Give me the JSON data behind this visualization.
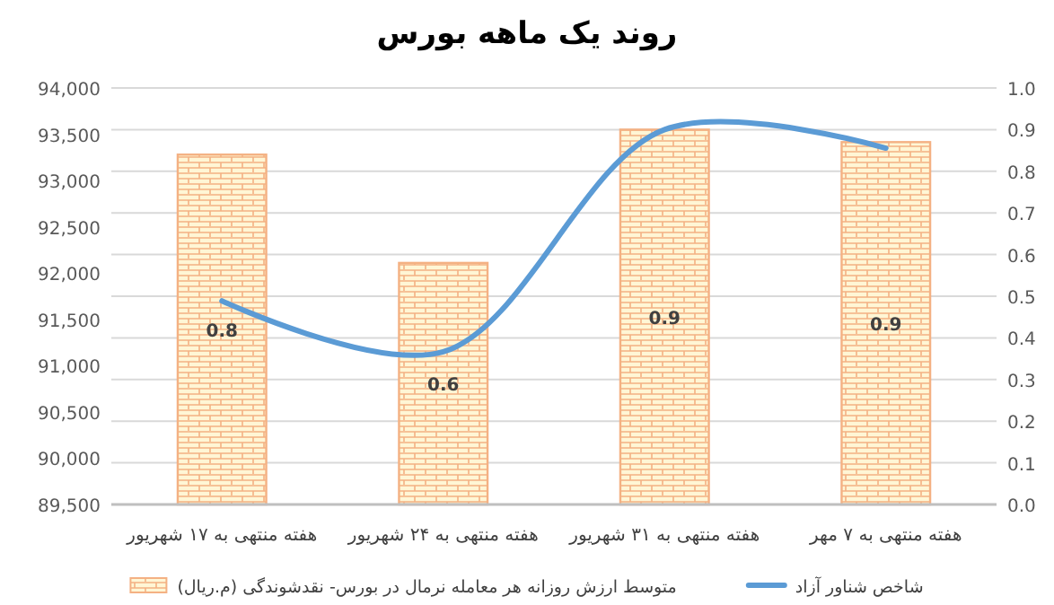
{
  "chart_data": {
    "type": "bar",
    "title": "روند یک ماهه بورس",
    "categories": [
      "هفته منتهی به ۱۷ شهریور",
      "هفته منتهی به ۲۴ شهریور",
      "هفته منتهی به ۳۱ شهریور",
      "هفته منتهی به ۷ مهر"
    ],
    "series": [
      {
        "name": "متوسط ارزش روزانه هر معامله نرمال در بورس- نقدشوندگی (م.ریال)",
        "axis": "y2",
        "color": "#f4b183",
        "values": [
          0.84,
          0.58,
          0.9,
          0.87
        ],
        "value_labels": [
          "0.8",
          "0.6",
          "0.9",
          "0.9"
        ]
      },
      {
        "name": "شاخص شناور آزاد",
        "type": "line",
        "color": "#5b9bd5",
        "values": [
          91700,
          91150,
          93550,
          93350
        ]
      }
    ],
    "ylim": [
      89500,
      94000
    ],
    "yticks": [
      {
        "value": 89500,
        "label": "89,500"
      },
      {
        "value": 90000,
        "label": "90,000"
      },
      {
        "value": 90500,
        "label": "90,500"
      },
      {
        "value": 91000,
        "label": "91,000"
      },
      {
        "value": 91500,
        "label": "91,500"
      },
      {
        "value": 92000,
        "label": "92,000"
      },
      {
        "value": 92500,
        "label": "92,500"
      },
      {
        "value": 93000,
        "label": "93,000"
      },
      {
        "value": 93500,
        "label": "93,500"
      },
      {
        "value": 94000,
        "label": "94,000"
      }
    ],
    "y2lim": [
      0,
      1
    ],
    "y2ticks": [
      {
        "value": 0,
        "label": "0.0"
      },
      {
        "value": 0.1,
        "label": "0.1"
      },
      {
        "value": 0.2,
        "label": "0.2"
      },
      {
        "value": 0.3,
        "label": "0.3"
      },
      {
        "value": 0.4,
        "label": "0.4"
      },
      {
        "value": 0.5,
        "label": "0.5"
      },
      {
        "value": 0.6,
        "label": "0.6"
      },
      {
        "value": 0.7,
        "label": "0.7"
      },
      {
        "value": 0.8,
        "label": "0.8"
      },
      {
        "value": 0.9,
        "label": "0.9"
      },
      {
        "value": 1,
        "label": "1.0"
      }
    ],
    "grid": true,
    "legend": "bottom"
  }
}
